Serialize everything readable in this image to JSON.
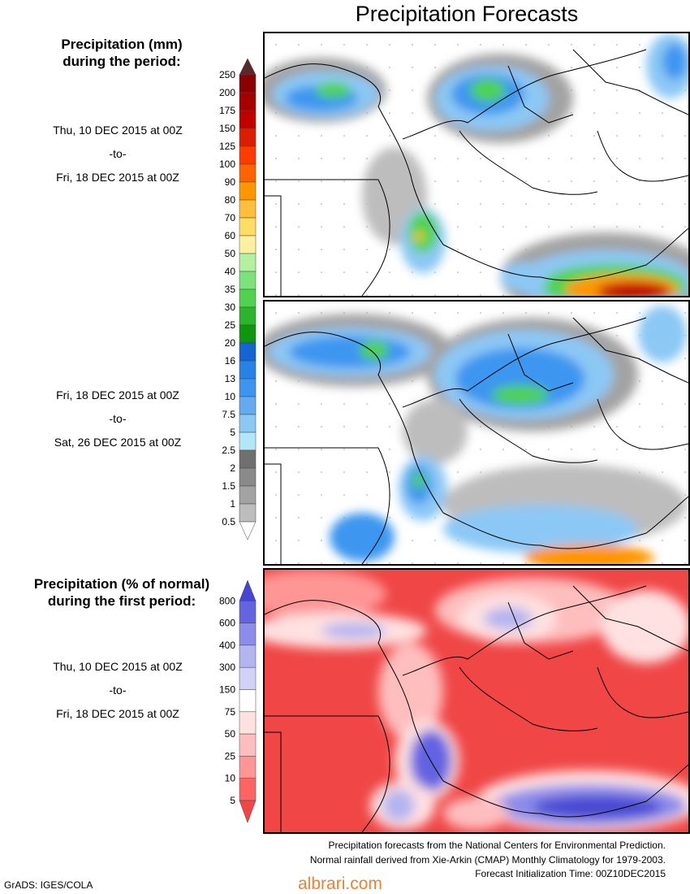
{
  "title": "Precipitation Forecasts",
  "panels": {
    "mm_heading_line1": "Precipitation (mm)",
    "mm_heading_line2": "during the period:",
    "period1": {
      "start": "Thu, 10 DEC 2015 at 00Z",
      "sep": "-to-",
      "end": "Fri, 18 DEC 2015 at 00Z"
    },
    "period2": {
      "start": "Fri, 18 DEC 2015 at 00Z",
      "sep": "-to-",
      "end": "Sat, 26 DEC 2015 at 00Z"
    },
    "pct_heading_line1": "Precipitation (% of normal)",
    "pct_heading_line2": "during the first period:",
    "period3": {
      "start": "Thu, 10 DEC 2015 at 00Z",
      "sep": "-to-",
      "end": "Fri, 18 DEC 2015 at 00Z"
    }
  },
  "colorbar_mm": {
    "labels": [
      "250",
      "200",
      "175",
      "150",
      "125",
      "100",
      "90",
      "80",
      "70",
      "60",
      "50",
      "40",
      "35",
      "30",
      "25",
      "20",
      "16",
      "13",
      "10",
      "7.5",
      "5",
      "2.5",
      "2",
      "1.5",
      "1",
      "0.5"
    ],
    "colors": [
      "#5a2a2a",
      "#8b0000",
      "#a50000",
      "#c00000",
      "#dc1e00",
      "#ff3c00",
      "#ff6400",
      "#ff9600",
      "#ffbe3c",
      "#ffdc64",
      "#fff0a0",
      "#b4f0a0",
      "#7ce37c",
      "#50d250",
      "#2db42d",
      "#0f960f",
      "#1464d2",
      "#2882e6",
      "#3c96f0",
      "#64aaf0",
      "#8cc8f5",
      "#b4e6fa",
      "#707070",
      "#8a8a8a",
      "#a3a3a3",
      "#bdbdbd"
    ],
    "bottom_color": "#ffffff"
  },
  "colorbar_pct": {
    "labels": [
      "800",
      "600",
      "400",
      "300",
      "150",
      "75",
      "50",
      "25",
      "10",
      "5"
    ],
    "colors": [
      "#4646d2",
      "#6464e1",
      "#8c8ceb",
      "#b4b4f0",
      "#d2d2f8",
      "#ffffff",
      "#ffe1e1",
      "#ffbebe",
      "#ff9696",
      "#ff6464"
    ],
    "bottom_color": "#f04646"
  },
  "footnote": {
    "line1": "Precipitation forecasts from the National Centers for Environmental Prediction.",
    "line2": "Normal rainfall derived from Xie-Arkin (CMAP) Monthly Climatology for 1979-2003.",
    "line3": "Forecast Initialization Time: 00Z10DEC2015"
  },
  "credit": "GrADS: IGES/COLA",
  "watermark": "albrari.com"
}
